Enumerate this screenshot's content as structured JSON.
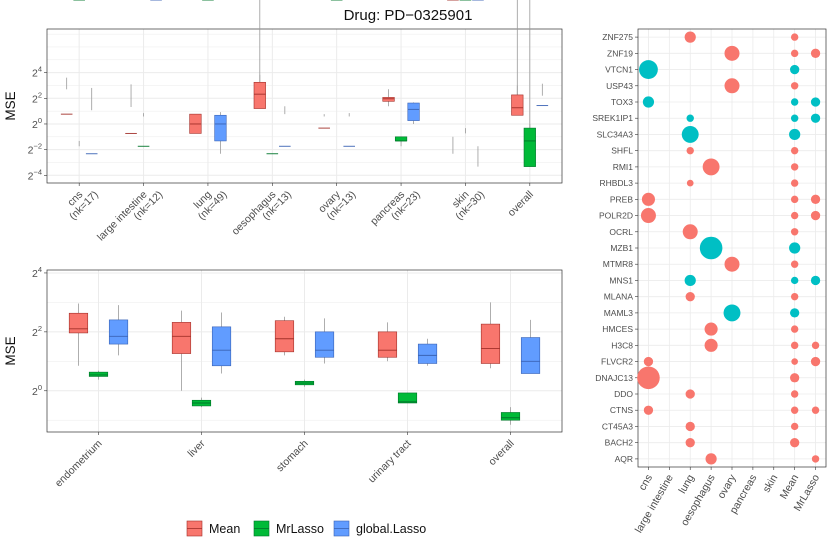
{
  "title": "Drug: PD−0325901",
  "colors": {
    "Mean": "#F8766D",
    "MrLasso": "#00BA38",
    "global.Lasso": "#619CFF",
    "grid": "#ebebeb",
    "teal": "#00BFC4"
  },
  "legend": {
    "items": [
      "Mean",
      "MrLasso",
      "global.Lasso"
    ]
  },
  "chart_data": [
    {
      "type": "box",
      "ylabel": "MSE",
      "y_scale": "log2",
      "ylim_log2": [
        -4.6,
        7.4
      ],
      "y_ticks": [
        {
          "exp": -4,
          "label_base": "2",
          "label_exp": "−4"
        },
        {
          "exp": -2,
          "label_base": "2",
          "label_exp": "−2"
        },
        {
          "exp": 0,
          "label_base": "2",
          "label_exp": "0"
        },
        {
          "exp": 2,
          "label_base": "2",
          "label_exp": "2"
        },
        {
          "exp": 4,
          "label_base": "2",
          "label_exp": "4"
        }
      ],
      "categories": [
        {
          "name": "cns",
          "sub": "(nk=17)"
        },
        {
          "name": "large intestine",
          "sub": "(nk=12)"
        },
        {
          "name": "lung",
          "sub": "(nk=49)"
        },
        {
          "name": "oesophagus",
          "sub": "(nk=13)"
        },
        {
          "name": "ovary",
          "sub": "(nk=13)"
        },
        {
          "name": "pancreas",
          "sub": "(nk=23)"
        },
        {
          "name": "skin",
          "sub": "(nk=30)"
        },
        {
          "name": "overall",
          "sub": ""
        }
      ],
      "series": [
        {
          "name": "Mean",
          "boxes": [
            [
              -0.9,
              -0.4,
              1.7,
              6.5,
              12.2
            ],
            [
              -1.3,
              -0.9,
              0.6,
              2.5,
              8.5
            ],
            [
              0.6,
              0.6,
              1.0,
              1.7,
              1.7
            ],
            [
              -0.1,
              2.3,
              5.0,
              9.5,
              14.3
            ],
            [
              -0.9,
              0.0,
              0.8,
              1.5,
              1.7
            ],
            [
              2.6,
              3.4,
              3.9,
              4.2,
              6.5
            ],
            [
              -5.2,
              -1.4,
              -0.5,
              0.2,
              0.5
            ],
            [
              -0.4,
              1.6,
              2.4,
              4.8,
              8.0
            ]
          ]
        },
        {
          "name": "MrLasso",
          "boxes": [
            [
              -1.9,
              -1.4,
              -0.6,
              0.3,
              0.4
            ],
            [
              -0.7,
              -0.1,
              0.3,
              1.5,
              1.8
            ],
            [
              -0.3,
              -0.2,
              -0.1,
              0.2,
              0.2
            ],
            [
              -0.5,
              -0.1,
              0.2,
              0.8,
              0.8
            ],
            [
              -1.8,
              -0.7,
              -0.3,
              0.1,
              0.1
            ],
            [
              0.3,
              0.4,
              0.4,
              0.5,
              0.5
            ],
            [
              -1.2,
              -1.2,
              -0.6,
              0.6,
              0.8
            ],
            [
              -0.2,
              0.1,
              0.4,
              0.8,
              1.0
            ]
          ]
        },
        {
          "name": "global.Lasso",
          "boxes": [
            [
              -1.5,
              -0.6,
              0.2,
              2.1,
              7.0
            ],
            [
              -3.0,
              -1.6,
              0.0,
              3.0,
              3.0
            ],
            [
              0.2,
              0.4,
              1.0,
              1.6,
              1.9
            ],
            [
              -0.8,
              0.0,
              0.3,
              1.7,
              2.6
            ],
            [
              -1.5,
              0.0,
              0.3,
              1.5,
              1.8
            ],
            [
              1.0,
              1.2,
              2.2,
              3.1,
              3.2
            ],
            [
              -1.8,
              -1.5,
              -0.1,
              0.1,
              0.3
            ],
            [
              -0.8,
              -0.4,
              2.7,
              4.6,
              8.8
            ]
          ]
        }
      ]
    },
    {
      "type": "box",
      "ylabel": "MSE",
      "y_scale": "log2",
      "ylim_log2": [
        -1.4,
        4.1
      ],
      "y_ticks": [
        {
          "exp": 0,
          "label_base": "2",
          "label_exp": "0"
        },
        {
          "exp": 2,
          "label_base": "2",
          "label_exp": "2"
        },
        {
          "exp": 4,
          "label_base": "2",
          "label_exp": "4"
        }
      ],
      "categories": [
        {
          "name": "endometrium",
          "sub": ""
        },
        {
          "name": "liver",
          "sub": ""
        },
        {
          "name": "stomach",
          "sub": ""
        },
        {
          "name": "urinary tract",
          "sub": ""
        },
        {
          "name": "overall",
          "sub": ""
        }
      ],
      "series": [
        {
          "name": "Mean",
          "boxes": [
            [
              1.8,
              3.9,
              4.3,
              6.2,
              7.8
            ],
            [
              1.0,
              2.4,
              3.6,
              5.0,
              6.6
            ],
            [
              2.3,
              2.5,
              3.4,
              5.2,
              5.7
            ],
            [
              2.0,
              2.2,
              2.6,
              4.0,
              5.0
            ],
            [
              1.7,
              1.9,
              2.7,
              4.8,
              8.0
            ]
          ]
        },
        {
          "name": "MrLasso",
          "boxes": [
            [
              1.3,
              1.4,
              1.45,
              1.55,
              1.6
            ],
            [
              0.68,
              0.7,
              0.75,
              0.8,
              0.85
            ],
            [
              1.1,
              1.15,
              1.2,
              1.25,
              1.3
            ],
            [
              0.75,
              0.75,
              0.77,
              0.95,
              0.95
            ],
            [
              0.45,
              0.5,
              0.53,
              0.6,
              0.68
            ]
          ]
        },
        {
          "name": "global.Lasso",
          "boxes": [
            [
              2.3,
              3.0,
              3.6,
              5.3,
              7.5
            ],
            [
              1.5,
              1.8,
              2.6,
              4.5,
              6.3
            ],
            [
              1.9,
              2.2,
              2.6,
              4.0,
              5.5
            ],
            [
              1.8,
              1.9,
              2.3,
              3.0,
              3.4
            ],
            [
              1.5,
              1.5,
              2.0,
              3.5,
              5.3
            ]
          ]
        }
      ]
    },
    {
      "type": "dot",
      "x_categories": [
        "cns",
        "large intestine",
        "lung",
        "oesophagus",
        "ovary",
        "pancreas",
        "skin",
        "Mean",
        "MrLasso"
      ],
      "y_categories": [
        "ZNF275",
        "ZNF19",
        "VTCN1",
        "USP43",
        "TOX3",
        "SREK1IP1",
        "SLC34A3",
        "SHFL",
        "RMI1",
        "RHBDL3",
        "PREB",
        "POLR2D",
        "OCRL",
        "MZB1",
        "MTMR8",
        "MNS1",
        "MLANA",
        "MAML3",
        "HMCES",
        "H3C8",
        "FLVCR2",
        "DNAJC13",
        "DDO",
        "CTNS",
        "CT45A3",
        "BACH2",
        "AQR"
      ],
      "points": [
        {
          "gene": "ZNF275",
          "x": "lung",
          "size": 2,
          "color": "red"
        },
        {
          "gene": "ZNF275",
          "x": "Mean",
          "size": 1,
          "color": "red"
        },
        {
          "gene": "ZNF19",
          "x": "ovary",
          "size": 3,
          "color": "red"
        },
        {
          "gene": "ZNF19",
          "x": "Mean",
          "size": 1,
          "color": "red"
        },
        {
          "gene": "ZNF19",
          "x": "MrLasso",
          "size": 1.5,
          "color": "red"
        },
        {
          "gene": "VTCN1",
          "x": "cns",
          "size": 4,
          "color": "teal"
        },
        {
          "gene": "VTCN1",
          "x": "Mean",
          "size": 1.5,
          "color": "teal"
        },
        {
          "gene": "USP43",
          "x": "ovary",
          "size": 3,
          "color": "red"
        },
        {
          "gene": "USP43",
          "x": "Mean",
          "size": 1,
          "color": "red"
        },
        {
          "gene": "TOX3",
          "x": "cns",
          "size": 2,
          "color": "teal"
        },
        {
          "gene": "TOX3",
          "x": "Mean",
          "size": 1,
          "color": "teal"
        },
        {
          "gene": "TOX3",
          "x": "MrLasso",
          "size": 1.5,
          "color": "teal"
        },
        {
          "gene": "SREK1IP1",
          "x": "lung",
          "size": 1,
          "color": "teal"
        },
        {
          "gene": "SREK1IP1",
          "x": "Mean",
          "size": 1,
          "color": "teal"
        },
        {
          "gene": "SREK1IP1",
          "x": "MrLasso",
          "size": 1.5,
          "color": "teal"
        },
        {
          "gene": "SLC34A3",
          "x": "lung",
          "size": 3.5,
          "color": "teal"
        },
        {
          "gene": "SLC34A3",
          "x": "Mean",
          "size": 2,
          "color": "teal"
        },
        {
          "gene": "SHFL",
          "x": "lung",
          "size": 1,
          "color": "red"
        },
        {
          "gene": "SHFL",
          "x": "Mean",
          "size": 1,
          "color": "red"
        },
        {
          "gene": "RMI1",
          "x": "oesophagus",
          "size": 3.5,
          "color": "red"
        },
        {
          "gene": "RMI1",
          "x": "Mean",
          "size": 1,
          "color": "red"
        },
        {
          "gene": "RHBDL3",
          "x": "lung",
          "size": 0.8,
          "color": "red"
        },
        {
          "gene": "RHBDL3",
          "x": "Mean",
          "size": 1,
          "color": "red"
        },
        {
          "gene": "PREB",
          "x": "cns",
          "size": 2.5,
          "color": "red"
        },
        {
          "gene": "PREB",
          "x": "Mean",
          "size": 1,
          "color": "red"
        },
        {
          "gene": "PREB",
          "x": "MrLasso",
          "size": 1.5,
          "color": "red"
        },
        {
          "gene": "POLR2D",
          "x": "cns",
          "size": 3,
          "color": "red"
        },
        {
          "gene": "POLR2D",
          "x": "Mean",
          "size": 1,
          "color": "red"
        },
        {
          "gene": "POLR2D",
          "x": "MrLasso",
          "size": 1.5,
          "color": "red"
        },
        {
          "gene": "OCRL",
          "x": "lung",
          "size": 3,
          "color": "red"
        },
        {
          "gene": "OCRL",
          "x": "Mean",
          "size": 1,
          "color": "red"
        },
        {
          "gene": "MZB1",
          "x": "oesophagus",
          "size": 5,
          "color": "teal"
        },
        {
          "gene": "MZB1",
          "x": "Mean",
          "size": 2,
          "color": "teal"
        },
        {
          "gene": "MTMR8",
          "x": "ovary",
          "size": 3,
          "color": "red"
        },
        {
          "gene": "MTMR8",
          "x": "Mean",
          "size": 1,
          "color": "red"
        },
        {
          "gene": "MNS1",
          "x": "lung",
          "size": 2,
          "color": "teal"
        },
        {
          "gene": "MNS1",
          "x": "Mean",
          "size": 1,
          "color": "teal"
        },
        {
          "gene": "MNS1",
          "x": "MrLasso",
          "size": 1.5,
          "color": "teal"
        },
        {
          "gene": "MLANA",
          "x": "lung",
          "size": 1.5,
          "color": "red"
        },
        {
          "gene": "MLANA",
          "x": "Mean",
          "size": 1,
          "color": "red"
        },
        {
          "gene": "MAML3",
          "x": "ovary",
          "size": 3.5,
          "color": "teal"
        },
        {
          "gene": "MAML3",
          "x": "Mean",
          "size": 1.5,
          "color": "teal"
        },
        {
          "gene": "HMCES",
          "x": "oesophagus",
          "size": 2.5,
          "color": "red"
        },
        {
          "gene": "HMCES",
          "x": "Mean",
          "size": 1,
          "color": "red"
        },
        {
          "gene": "H3C8",
          "x": "oesophagus",
          "size": 2.5,
          "color": "red"
        },
        {
          "gene": "H3C8",
          "x": "Mean",
          "size": 1,
          "color": "red"
        },
        {
          "gene": "H3C8",
          "x": "MrLasso",
          "size": 1,
          "color": "red"
        },
        {
          "gene": "FLVCR2",
          "x": "cns",
          "size": 1.5,
          "color": "red"
        },
        {
          "gene": "FLVCR2",
          "x": "Mean",
          "size": 0.8,
          "color": "red"
        },
        {
          "gene": "FLVCR2",
          "x": "MrLasso",
          "size": 1.5,
          "color": "red"
        },
        {
          "gene": "DNAJC13",
          "x": "cns",
          "size": 5,
          "color": "red"
        },
        {
          "gene": "DNAJC13",
          "x": "Mean",
          "size": 1.5,
          "color": "red"
        },
        {
          "gene": "DDO",
          "x": "lung",
          "size": 1.5,
          "color": "red"
        },
        {
          "gene": "DDO",
          "x": "Mean",
          "size": 1,
          "color": "red"
        },
        {
          "gene": "CTNS",
          "x": "cns",
          "size": 1.5,
          "color": "red"
        },
        {
          "gene": "CTNS",
          "x": "Mean",
          "size": 1,
          "color": "red"
        },
        {
          "gene": "CTNS",
          "x": "MrLasso",
          "size": 1,
          "color": "red"
        },
        {
          "gene": "CT45A3",
          "x": "lung",
          "size": 1.5,
          "color": "red"
        },
        {
          "gene": "CT45A3",
          "x": "Mean",
          "size": 1,
          "color": "red"
        },
        {
          "gene": "BACH2",
          "x": "lung",
          "size": 1.5,
          "color": "red"
        },
        {
          "gene": "BACH2",
          "x": "Mean",
          "size": 1.5,
          "color": "red"
        },
        {
          "gene": "AQR",
          "x": "oesophagus",
          "size": 2,
          "color": "red"
        },
        {
          "gene": "AQR",
          "x": "MrLasso",
          "size": 1,
          "color": "red"
        }
      ]
    }
  ]
}
